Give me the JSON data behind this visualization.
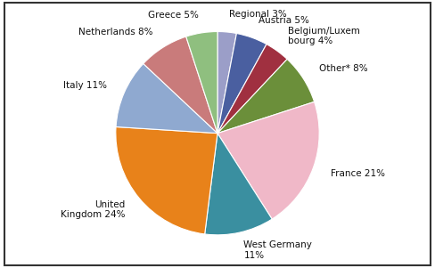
{
  "labels": [
    "Regional 3%",
    "Austria 5%",
    "Belgium/Luxem\nbourg 4%",
    "Other* 8%",
    "France 21%",
    "West Germany\n11%",
    "United\nKingdom 24%",
    "Italy 11%",
    "Netherlands 8%",
    "Greece 5%"
  ],
  "values": [
    3,
    5,
    4,
    8,
    21,
    11,
    24,
    11,
    8,
    5
  ],
  "colors": [
    "#9B9EC8",
    "#4A5FA0",
    "#A03040",
    "#6B8F3A",
    "#F0B8C8",
    "#3A8FA0",
    "#E8821A",
    "#8FA9D0",
    "#C97B7B",
    "#8FBF7F"
  ],
  "startangle": 90,
  "background_color": "#ffffff",
  "border_color": "#333333",
  "label_fontsize": 7.5
}
